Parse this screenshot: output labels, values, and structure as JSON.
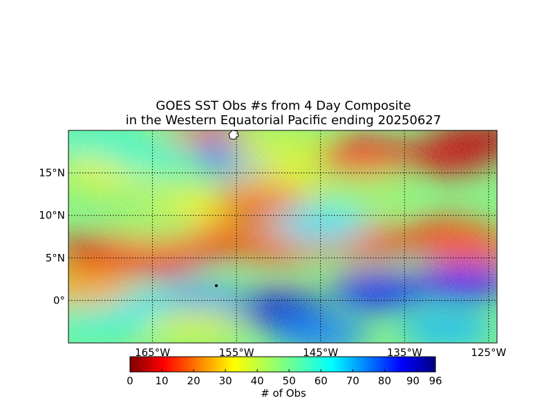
{
  "chart_data": {
    "type": "heatmap",
    "title_line1": "GOES SST Obs #s from 4 Day Composite",
    "title_line2": "in the Western Equatorial Pacific ending 20250627",
    "x_ticks": [
      {
        "lon": -165,
        "label": "165°W"
      },
      {
        "lon": -155,
        "label": "155°W"
      },
      {
        "lon": -145,
        "label": "145°W"
      },
      {
        "lon": -135,
        "label": "135°W"
      },
      {
        "lon": -125,
        "label": "125°W"
      }
    ],
    "y_ticks": [
      {
        "lat": 15,
        "label": "15°N"
      },
      {
        "lat": 10,
        "label": "10°N"
      },
      {
        "lat": 5,
        "label": "5°N"
      },
      {
        "lat": 0,
        "label": "0°"
      }
    ],
    "lon_range": [
      -175,
      -124
    ],
    "lat_range": [
      -5,
      20
    ],
    "grid": true,
    "colorbar": {
      "label": "# of Obs",
      "min": 0,
      "max": 96,
      "ticks": [
        {
          "value": 0,
          "label": "0"
        },
        {
          "value": 10,
          "label": "10"
        },
        {
          "value": 20,
          "label": "20"
        },
        {
          "value": 30,
          "label": "30"
        },
        {
          "value": 40,
          "label": "40"
        },
        {
          "value": 50,
          "label": "50"
        },
        {
          "value": 60,
          "label": "60"
        },
        {
          "value": 70,
          "label": "70"
        },
        {
          "value": 80,
          "label": "80"
        },
        {
          "value": 90,
          "label": "90"
        },
        {
          "value": 96,
          "label": "96"
        }
      ],
      "colormap": "jet"
    },
    "regions": [
      {
        "lon": -171,
        "lat": 5.5,
        "value": 10
      },
      {
        "lon": -165,
        "lat": 5,
        "value": 12
      },
      {
        "lon": -158,
        "lat": 7,
        "value": 15
      },
      {
        "lon": -150,
        "lat": 6.5,
        "value": 20
      },
      {
        "lon": -140,
        "lat": 7,
        "value": 18
      },
      {
        "lon": -130,
        "lat": 7.5,
        "value": 15
      },
      {
        "lon": -127,
        "lat": 6,
        "value": 20
      },
      {
        "lon": -140,
        "lat": 17,
        "value": 12
      },
      {
        "lon": -130,
        "lat": 17,
        "value": 8
      },
      {
        "lon": -126,
        "lat": 19,
        "value": 5
      },
      {
        "lon": -158,
        "lat": 19,
        "value": 15
      },
      {
        "lon": -170,
        "lat": 15,
        "value": 38
      },
      {
        "lon": -150,
        "lat": 14,
        "value": 38
      },
      {
        "lon": -160,
        "lat": 11,
        "value": 36
      },
      {
        "lon": -152,
        "lat": 11.5,
        "value": 20
      },
      {
        "lon": -165,
        "lat": 9,
        "value": 45
      },
      {
        "lon": -140,
        "lat": 12.5,
        "value": 45
      },
      {
        "lon": -145,
        "lat": 9,
        "value": 62
      },
      {
        "lon": -155,
        "lat": 17,
        "value": 72
      },
      {
        "lon": -165,
        "lat": 17,
        "value": 55
      },
      {
        "lon": -172,
        "lat": 19,
        "value": 55
      },
      {
        "lon": -150,
        "lat": 18,
        "value": 40
      },
      {
        "lon": -150,
        "lat": -1,
        "value": 88
      },
      {
        "lon": -138,
        "lat": 1,
        "value": 82
      },
      {
        "lon": -128,
        "lat": 2,
        "value": 84
      },
      {
        "lon": -160,
        "lat": 0,
        "value": 70
      },
      {
        "lon": -168,
        "lat": -1,
        "value": 62
      },
      {
        "lon": -172,
        "lat": -3,
        "value": 55
      },
      {
        "lon": -145,
        "lat": -4,
        "value": 72
      },
      {
        "lon": -130,
        "lat": -3.5,
        "value": 66
      },
      {
        "lon": -173,
        "lat": 1.5,
        "value": 28
      },
      {
        "lon": -160,
        "lat": -3,
        "value": 40
      }
    ]
  }
}
